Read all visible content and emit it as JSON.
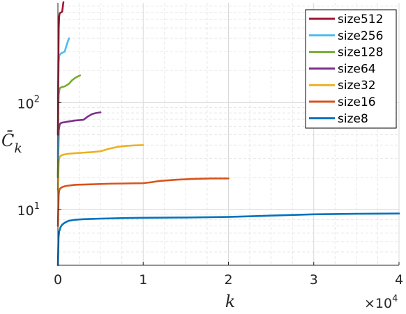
{
  "chart_data": {
    "type": "line",
    "xlabel": "k",
    "ylabel": "C̄",
    "ylabel_sub": "k",
    "x_scale": "linear",
    "y_scale": "log",
    "xlim": [
      0,
      40000
    ],
    "ylim": [
      3,
      860
    ],
    "x_multiplier": {
      "base": "×10",
      "exponent": "4"
    },
    "x_ticks": [
      {
        "value": 0,
        "label": "0"
      },
      {
        "value": 10000,
        "label": "1"
      },
      {
        "value": 20000,
        "label": "2"
      },
      {
        "value": 30000,
        "label": "3"
      },
      {
        "value": 40000,
        "label": "4"
      }
    ],
    "y_ticks": [
      {
        "value": 10,
        "base": "10",
        "exp": "1"
      },
      {
        "value": 100,
        "base": "10",
        "exp": "2"
      }
    ],
    "grid": true,
    "legend_position": "top-right",
    "series": [
      {
        "name": "size512",
        "color": "#A2142F",
        "x": [
          0,
          50,
          100,
          150,
          200,
          250,
          300,
          400,
          500,
          550,
          600,
          650
        ],
        "y": [
          50,
          220,
          500,
          640,
          680,
          690,
          695,
          700,
          710,
          760,
          820,
          870
        ]
      },
      {
        "name": "size256",
        "color": "#4DBEEE",
        "x": [
          0,
          50,
          100,
          150,
          200,
          300,
          400,
          600,
          800,
          1000,
          1200,
          1300
        ],
        "y": [
          30,
          150,
          240,
          270,
          280,
          285,
          290,
          295,
          300,
          340,
          380,
          400
        ]
      },
      {
        "name": "size128",
        "color": "#77AC30",
        "x": [
          0,
          50,
          100,
          200,
          300,
          500,
          800,
          1000,
          1300,
          1600,
          2000,
          2300,
          2600
        ],
        "y": [
          20,
          90,
          120,
          135,
          138,
          140,
          142,
          145,
          150,
          160,
          170,
          175,
          180
        ]
      },
      {
        "name": "size64",
        "color": "#7E2F8E",
        "x": [
          0,
          100,
          200,
          300,
          500,
          800,
          1000,
          1500,
          2000,
          2500,
          3000,
          3500,
          4000,
          4500,
          5000
        ],
        "y": [
          20,
          55,
          62,
          64,
          65,
          65.5,
          66,
          67,
          68,
          68.5,
          69,
          74,
          78,
          80,
          81
        ]
      },
      {
        "name": "size32",
        "color": "#EDB120",
        "x": [
          0,
          100,
          200,
          400,
          600,
          1000,
          1500,
          2000,
          3000,
          4000,
          5000,
          6000,
          7000,
          8000,
          9000,
          10000
        ],
        "y": [
          15,
          28,
          31,
          32,
          32.5,
          33,
          33.3,
          33.6,
          34,
          34.4,
          35,
          37,
          38.5,
          39.3,
          39.8,
          40
        ]
      },
      {
        "name": "size16",
        "color": "#D95319",
        "x": [
          0,
          100,
          200,
          400,
          600,
          1000,
          2000,
          3000,
          4000,
          6000,
          8000,
          10000,
          11000,
          12000,
          14000,
          16000,
          18000,
          20000
        ],
        "y": [
          7,
          14,
          15.5,
          16,
          16.3,
          16.6,
          17,
          17.1,
          17.2,
          17.4,
          17.5,
          17.6,
          18,
          18.5,
          19,
          19.3,
          19.5,
          19.5
        ]
      },
      {
        "name": "size8",
        "color": "#0072BD",
        "x": [
          0,
          80,
          150,
          300,
          500,
          800,
          1200,
          2000,
          3000,
          5000,
          8000,
          10000,
          15000,
          20000,
          25000,
          30000,
          35000,
          40000
        ],
        "y": [
          3,
          5.5,
          6.2,
          6.8,
          7.2,
          7.5,
          7.8,
          8.0,
          8.1,
          8.2,
          8.3,
          8.35,
          8.4,
          8.5,
          8.75,
          9.0,
          9.1,
          9.15
        ]
      }
    ]
  }
}
